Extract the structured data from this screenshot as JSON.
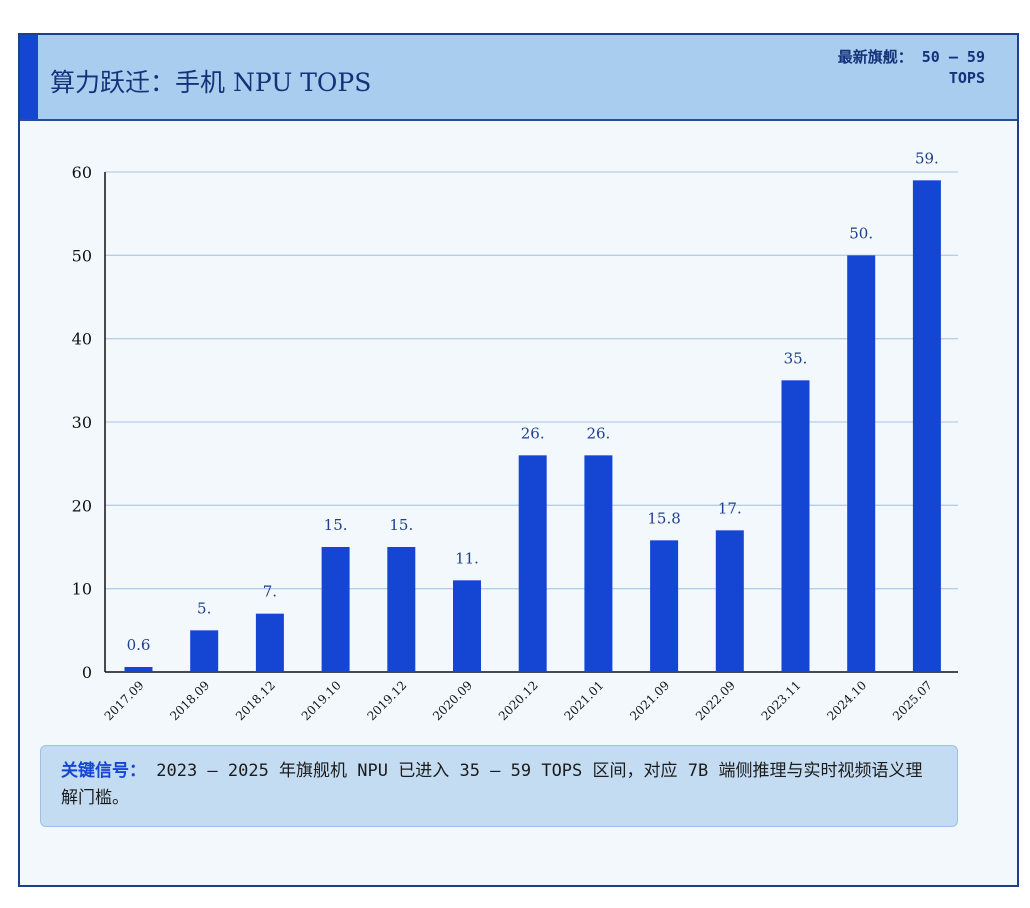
{
  "header": {
    "title": "算力跃迁：手机 NPU TOPS",
    "badge_line1": "最新旗舰： 50 – 59",
    "badge_line2": "TOPS"
  },
  "note": {
    "label": "关键信号：",
    "text": " 2023 – 2025 年旗舰机 NPU 已进入 35 – 59 TOPS 区间，对应 7B 端侧推理与实时视频语义理解门槛。"
  },
  "colors": {
    "bar": "#1546d3",
    "header_bg": "#a9cdee",
    "panel_bg": "#f3f8fd",
    "grid": "#b6cfe8",
    "label": "#1e3f8c"
  },
  "chart_data": {
    "type": "bar",
    "title": "算力跃迁：手机 NPU TOPS",
    "xlabel": "",
    "ylabel": "",
    "ylim": [
      0,
      60
    ],
    "yticks": [
      0,
      10,
      20,
      30,
      40,
      50,
      60
    ],
    "grid": true,
    "categories": [
      "2017.09",
      "2018.09",
      "2018.12",
      "2019.10",
      "2019.12",
      "2020.09",
      "2020.12",
      "2021.01",
      "2021.09",
      "2022.09",
      "2023.11",
      "2024.10",
      "2025.07"
    ],
    "values": [
      0.6,
      5,
      7,
      15,
      15,
      11,
      26,
      26,
      15.8,
      17,
      35,
      50,
      59
    ],
    "data_labels": [
      "0.6",
      "5.",
      "7.",
      "15.",
      "15.",
      "11.",
      "26.",
      "26.",
      "15.8",
      "17.",
      "35.",
      "50.",
      "59."
    ]
  }
}
